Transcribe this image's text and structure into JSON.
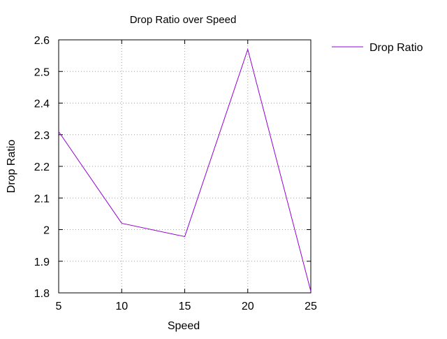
{
  "chart_data": {
    "type": "line",
    "title": "Drop Ratio over Speed",
    "xlabel": "Speed",
    "ylabel": "Drop Ratio",
    "x": [
      5,
      10,
      15,
      20,
      25
    ],
    "series": [
      {
        "name": "Drop Ratio",
        "values": [
          2.31,
          2.02,
          1.978,
          2.57,
          1.805
        ],
        "color": "#9400d3"
      }
    ],
    "xlim": [
      5,
      25
    ],
    "ylim": [
      1.8,
      2.6
    ],
    "xticks": [
      5,
      10,
      15,
      20,
      25
    ],
    "yticks": [
      1.8,
      1.9,
      2.0,
      2.1,
      2.2,
      2.3,
      2.4,
      2.5,
      2.6
    ],
    "xtick_labels": [
      "5",
      "10",
      "15",
      "20",
      "25"
    ],
    "ytick_labels": [
      "1.8",
      "1.9",
      "2",
      "2.1",
      "2.2",
      "2.3",
      "2.4",
      "2.5",
      "2.6"
    ],
    "grid": true,
    "legend_position": "top-right-outside"
  }
}
